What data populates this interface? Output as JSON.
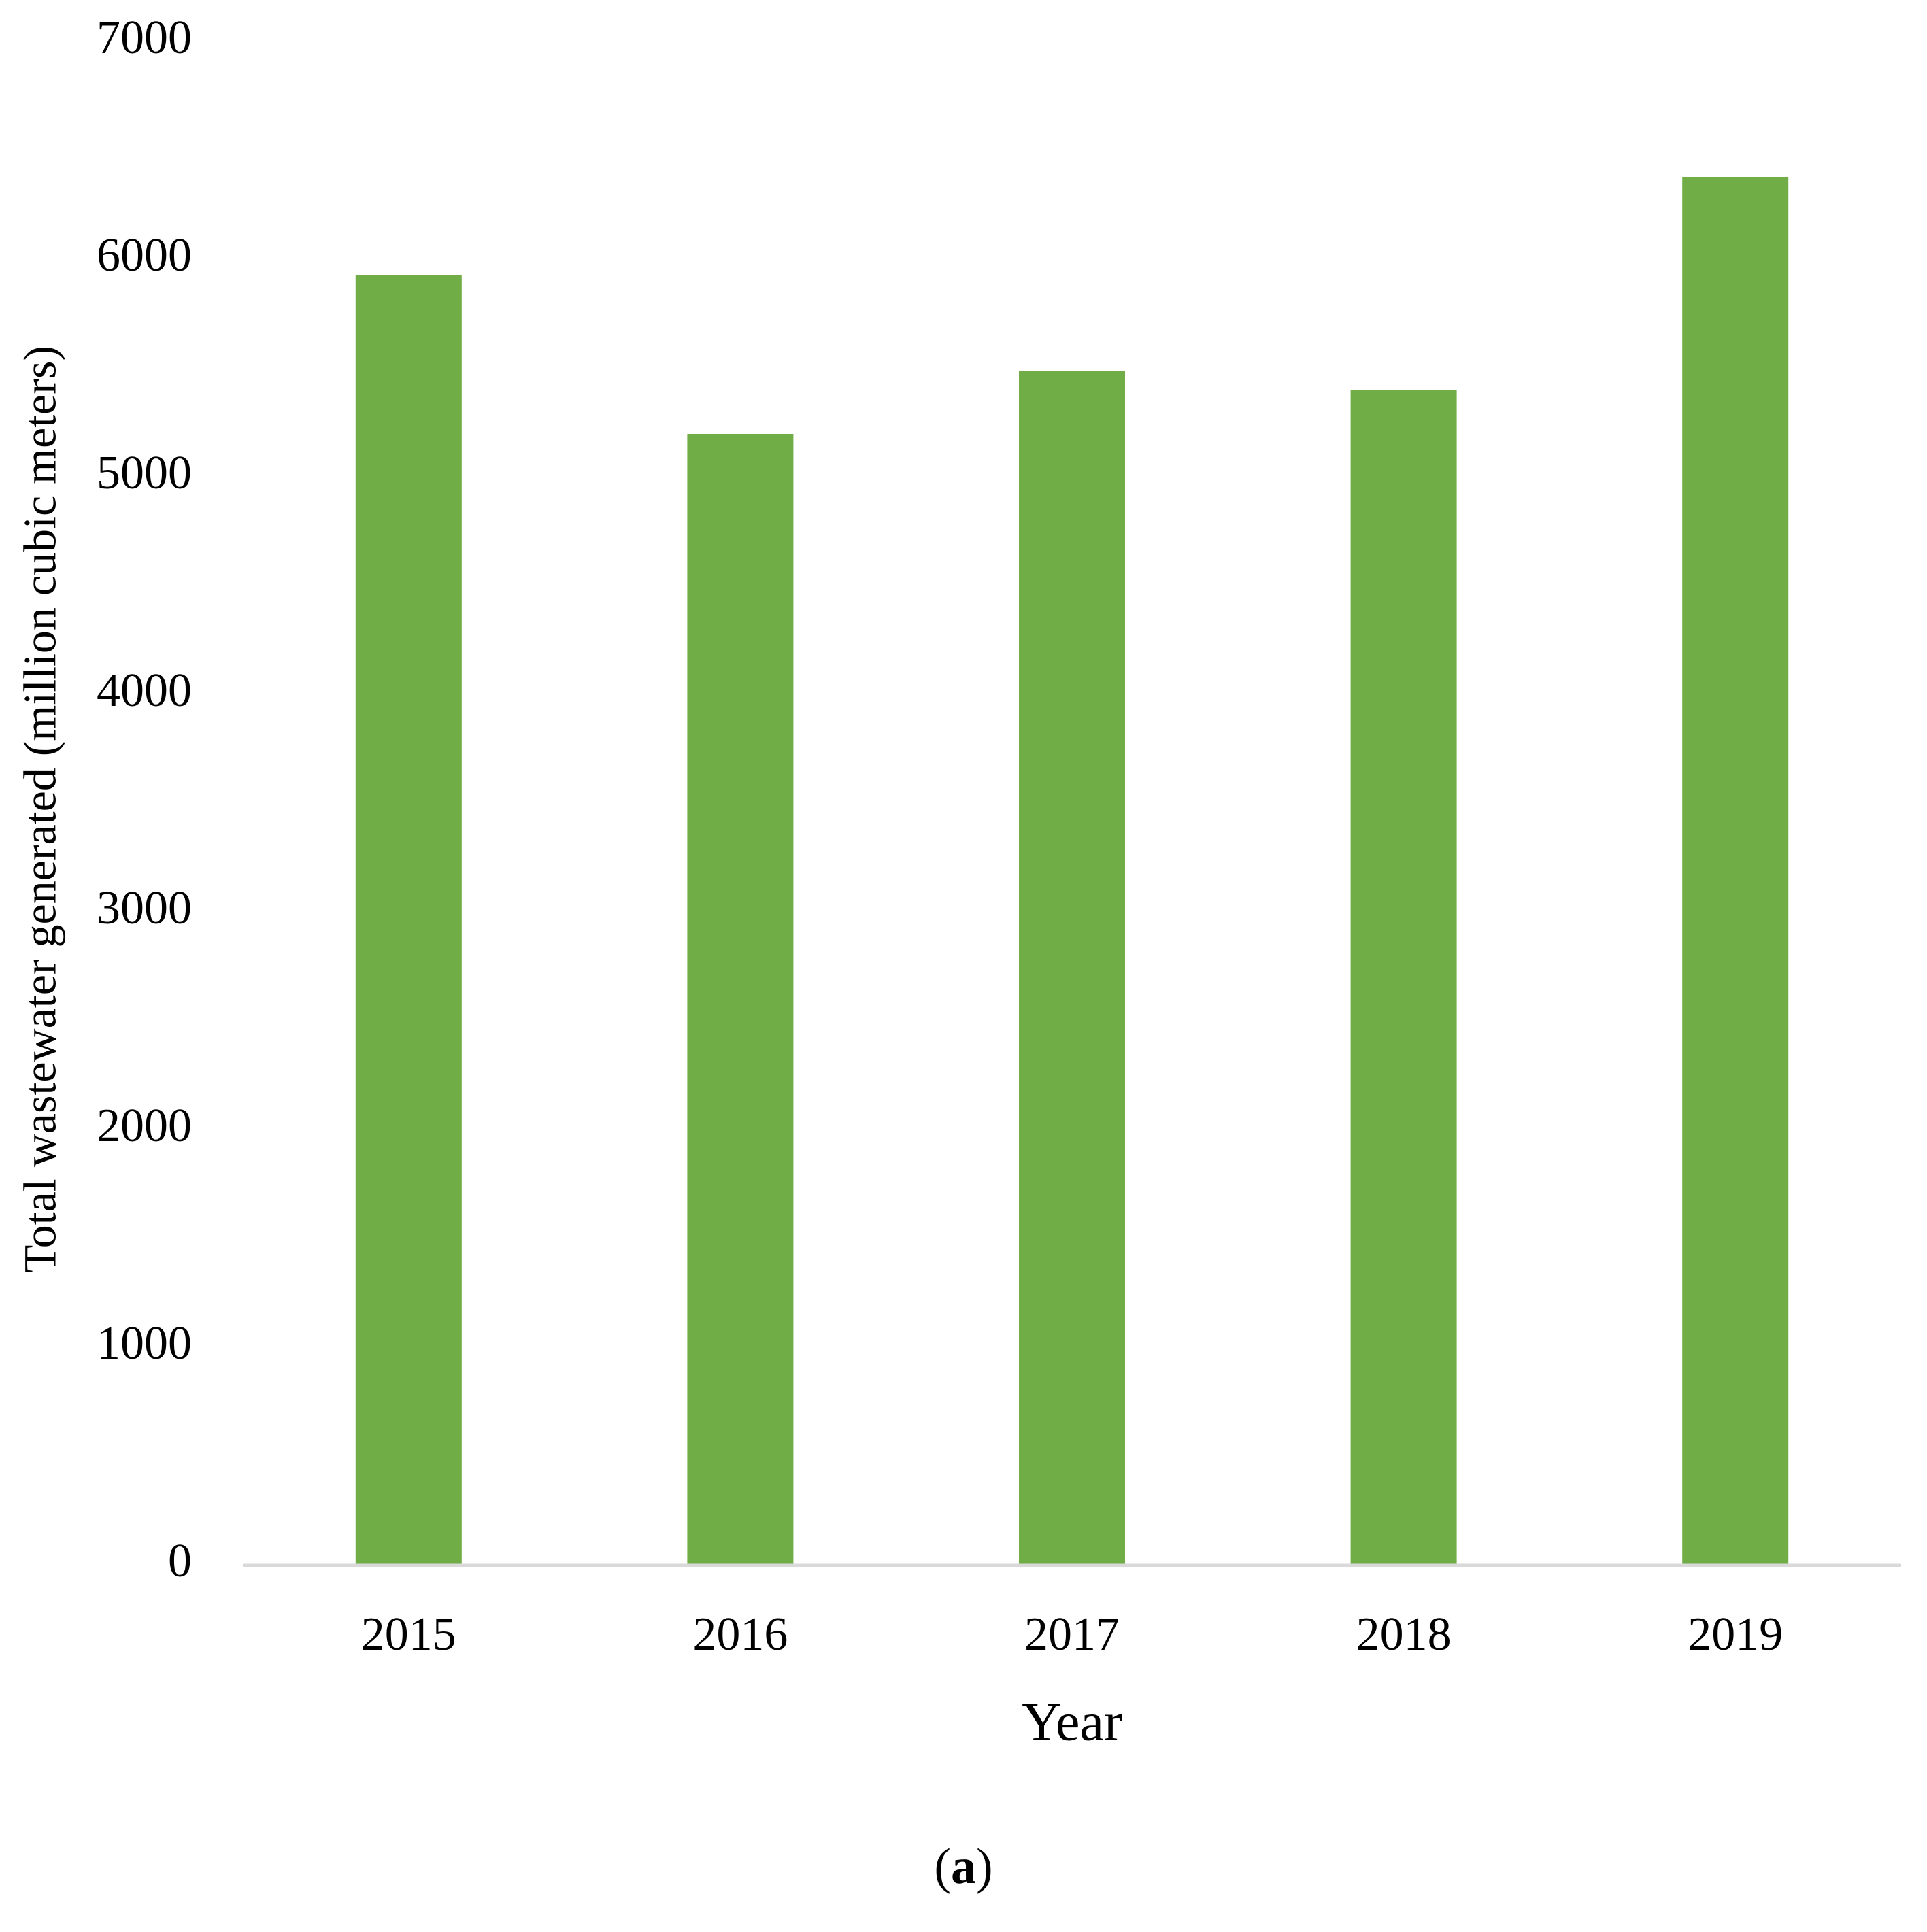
{
  "chart_data": {
    "type": "bar",
    "categories": [
      "2015",
      "2016",
      "2017",
      "2018",
      "2019"
    ],
    "series": [
      {
        "values": [
          5930,
          5200,
          5490,
          5400,
          6380
        ]
      }
    ],
    "title": "",
    "xlabel": "Year",
    "ylabel": "Total wastewater generated (million cubic meters)",
    "ylim": [
      0,
      7000
    ],
    "yticks": [
      "0",
      "1000",
      "2000",
      "3000",
      "4000",
      "5000",
      "6000",
      "7000"
    ],
    "grid": false,
    "legend": "none",
    "bar_color": "#70ad47",
    "axis_color": "#d9d9d9"
  },
  "panel_label": {
    "open": "(",
    "letter": "a",
    "close": ")"
  }
}
